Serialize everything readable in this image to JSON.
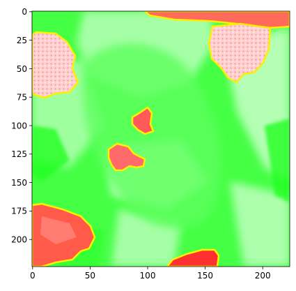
{
  "image": {
    "description_colors": {
      "background_green": "#33ff33",
      "highlight_red": "#ff4040",
      "contour_yellow": "#ffee00",
      "pale_mask": "#c8ffc8"
    }
  },
  "axes": {
    "x": {
      "range": [
        0,
        224
      ],
      "ticks": [
        0,
        50,
        100,
        150,
        200
      ],
      "tick_labels": [
        "0",
        "50",
        "100",
        "150",
        "200"
      ]
    },
    "y": {
      "range": [
        0,
        224
      ],
      "inverted": true,
      "ticks": [
        0,
        25,
        50,
        75,
        100,
        125,
        150,
        175,
        200
      ],
      "tick_labels": [
        "0",
        "25",
        "50",
        "75",
        "100",
        "125",
        "150",
        "175",
        "200"
      ]
    }
  }
}
